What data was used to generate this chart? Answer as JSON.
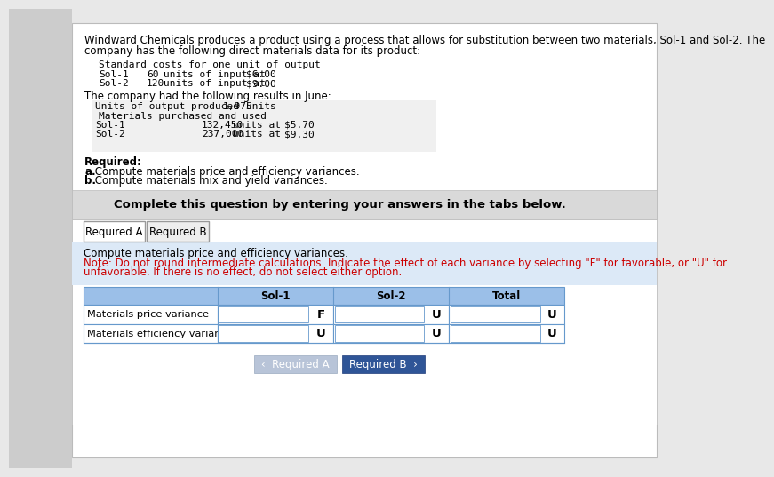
{
  "bg_color": "#e8e8e8",
  "white": "#ffffff",
  "light_blue_header": "#9bbfe8",
  "light_blue_note": "#dce9f7",
  "dark_blue_btn": "#2f5597",
  "gray_banner": "#d9d9d9",
  "gray_btn": "#b8c4d8",
  "tab_border": "#999999",
  "table_border": "#6699cc",
  "text_dark": "#000000",
  "text_red": "#cc0000",
  "text_white": "#ffffff",
  "intro_line1": "Windward Chemicals produces a product using a process that allows for substitution between two materials, Sol-1 and Sol-2. The",
  "intro_line2": "company has the following direct materials data for its product:",
  "std_header": "Standard costs for one unit of output",
  "std_sol1_label": "Sol-1",
  "std_sol1_qty": "60",
  "std_sol1_text": "units of input at",
  "std_sol1_price": "$6.00",
  "std_sol2_label": "Sol-2",
  "std_sol2_qty": "120",
  "std_sol2_text": "units of input at",
  "std_sol2_price": "$9.00",
  "results_header": "The company had the following results in June:",
  "output_label": "Units of output produced",
  "output_qty": "1,975",
  "output_units": "units",
  "materials_label": "Materials purchased and used",
  "sol1_label": "Sol-1",
  "sol1_qty": "132,450",
  "sol1_units": "units at",
  "sol1_price": "$5.70",
  "sol2_label": "Sol-2",
  "sol2_qty": "237,000",
  "sol2_units": "units at",
  "sol2_price": "$9.30",
  "req_bold": "Required:",
  "req_a_bold": "a.",
  "req_a_text": " Compute materials price and efficiency variances.",
  "req_b_bold": "b.",
  "req_b_text": " Compute materials mix and yield variances.",
  "banner_text": "Complete this question by entering your answers in the tabs below.",
  "tab1": "Required A",
  "tab2": "Required B",
  "instr_line1": "Compute materials price and efficiency variances.",
  "instr_note_line1": "Note: Do not round intermediate calculations. Indicate the effect of each variance by selecting \"F\" for favorable, or \"U\" for",
  "instr_note_line2": "unfavorable. If there is no effect, do not select either option.",
  "col_headers": [
    "Sol-1",
    "Sol-2",
    "Total"
  ],
  "row_labels": [
    "Materials price variance",
    "Materials efficiency variance"
  ],
  "cell_values": [
    [
      "F",
      "U",
      "U"
    ],
    [
      "U",
      "U",
      "U"
    ]
  ],
  "btn_left_text": "‹  Required A",
  "btn_right_text": "Required B  ›"
}
